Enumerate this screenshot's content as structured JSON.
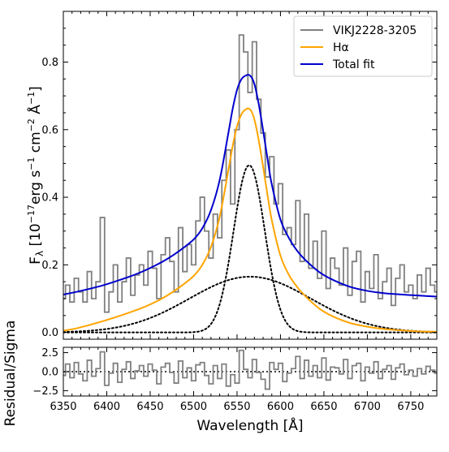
{
  "chart_data": [
    {
      "type": "line",
      "panel": "main",
      "ylabel_parts": [
        "F",
        "λ",
        " [10",
        "−17",
        "erg s",
        "−1",
        " cm",
        "−2",
        " Å",
        "−1",
        "]"
      ],
      "xlim": [
        6350,
        6780
      ],
      "ylim": [
        -0.02,
        0.95
      ],
      "yticks": [
        0.0,
        0.2,
        0.4,
        0.6,
        0.8
      ],
      "ytick_labels": [
        "0.0",
        "0.2",
        "0.4",
        "0.6",
        "0.8"
      ],
      "legend_position": "upper-right",
      "legend": [
        {
          "label": "VIKJ2228-3205",
          "color": "#808080"
        },
        {
          "label": "Hα",
          "color": "#ffa500"
        },
        {
          "label": "Total fit",
          "color": "#0000cd"
        }
      ],
      "components": [
        {
          "name": "narrow-gaussian",
          "center": 6564,
          "amplitude": 0.495,
          "sigma": 18,
          "color": "#000000",
          "style": "dotted"
        },
        {
          "name": "broad-gaussian",
          "center": 6565,
          "amplitude": 0.165,
          "sigma": 70,
          "color": "#000000",
          "style": "dotted"
        }
      ],
      "series": [
        {
          "name": "VIKJ2228-3205",
          "color": "#808080",
          "style": "step",
          "x": [
            6350,
            6355,
            6360,
            6365,
            6370,
            6375,
            6380,
            6385,
            6390,
            6395,
            6400,
            6405,
            6410,
            6415,
            6420,
            6425,
            6430,
            6435,
            6440,
            6445,
            6450,
            6455,
            6460,
            6465,
            6470,
            6475,
            6480,
            6485,
            6490,
            6495,
            6500,
            6505,
            6510,
            6515,
            6520,
            6525,
            6530,
            6535,
            6540,
            6545,
            6550,
            6555,
            6560,
            6565,
            6570,
            6575,
            6580,
            6585,
            6590,
            6595,
            6600,
            6605,
            6610,
            6615,
            6620,
            6625,
            6630,
            6635,
            6640,
            6645,
            6650,
            6655,
            6660,
            6665,
            6670,
            6675,
            6680,
            6685,
            6690,
            6695,
            6700,
            6705,
            6710,
            6715,
            6720,
            6725,
            6730,
            6735,
            6740,
            6745,
            6750,
            6755,
            6760,
            6765,
            6770,
            6775,
            6780
          ],
          "values": [
            0.1,
            0.14,
            0.09,
            0.16,
            0.12,
            0.09,
            0.18,
            0.1,
            0.15,
            0.34,
            0.06,
            0.12,
            0.2,
            0.09,
            0.15,
            0.22,
            0.11,
            0.17,
            0.2,
            0.14,
            0.24,
            0.19,
            0.1,
            0.23,
            0.28,
            0.21,
            0.12,
            0.31,
            0.18,
            0.26,
            0.2,
            0.33,
            0.4,
            0.3,
            0.22,
            0.35,
            0.28,
            0.45,
            0.54,
            0.38,
            0.6,
            0.88,
            0.83,
            0.71,
            0.86,
            0.69,
            0.59,
            0.46,
            0.52,
            0.38,
            0.44,
            0.29,
            0.31,
            0.26,
            0.39,
            0.21,
            0.35,
            0.19,
            0.27,
            0.16,
            0.3,
            0.13,
            0.22,
            0.19,
            0.14,
            0.25,
            0.11,
            0.21,
            0.24,
            0.09,
            0.18,
            0.13,
            0.23,
            0.1,
            0.15,
            0.19,
            0.08,
            0.16,
            0.2,
            0.12,
            0.14,
            0.1,
            0.17,
            0.12,
            0.19,
            0.14,
            0.12
          ]
        },
        {
          "name": "Hα",
          "color": "#ffa500",
          "style": "line",
          "x": [
            6350,
            6365,
            6380,
            6395,
            6410,
            6425,
            6440,
            6455,
            6470,
            6485,
            6500,
            6510,
            6520,
            6530,
            6540,
            6545,
            6550,
            6555,
            6560,
            6565,
            6570,
            6575,
            6580,
            6585,
            6590,
            6600,
            6610,
            6620,
            6630,
            6645,
            6660,
            6680,
            6700,
            6720,
            6740,
            6760,
            6780
          ],
          "values": [
            0.005,
            0.012,
            0.022,
            0.033,
            0.045,
            0.058,
            0.072,
            0.089,
            0.11,
            0.136,
            0.167,
            0.2,
            0.253,
            0.342,
            0.48,
            0.552,
            0.61,
            0.645,
            0.66,
            0.66,
            0.63,
            0.568,
            0.49,
            0.408,
            0.332,
            0.227,
            0.169,
            0.132,
            0.104,
            0.07,
            0.048,
            0.028,
            0.017,
            0.01,
            0.006,
            0.003,
            0.002
          ]
        },
        {
          "name": "Total fit",
          "color": "#0000cd",
          "style": "line",
          "x": [
            6350,
            6365,
            6380,
            6395,
            6410,
            6425,
            6440,
            6455,
            6470,
            6485,
            6500,
            6510,
            6520,
            6530,
            6540,
            6545,
            6550,
            6555,
            6560,
            6565,
            6570,
            6575,
            6580,
            6585,
            6590,
            6600,
            6610,
            6620,
            6630,
            6645,
            6660,
            6680,
            6700,
            6720,
            6740,
            6760,
            6780
          ],
          "values": [
            0.112,
            0.12,
            0.129,
            0.139,
            0.151,
            0.164,
            0.179,
            0.197,
            0.218,
            0.244,
            0.275,
            0.308,
            0.362,
            0.451,
            0.59,
            0.662,
            0.718,
            0.749,
            0.76,
            0.76,
            0.735,
            0.675,
            0.598,
            0.515,
            0.438,
            0.334,
            0.278,
            0.239,
            0.211,
            0.178,
            0.156,
            0.135,
            0.123,
            0.116,
            0.112,
            0.109,
            0.106
          ]
        }
      ]
    },
    {
      "type": "line",
      "panel": "residual",
      "xlabel": "Wavelength [Å]",
      "ylabel": "Residual/Sigma",
      "xlim": [
        6350,
        6780
      ],
      "ylim": [
        -3.2,
        3.2
      ],
      "xticks": [
        6350,
        6400,
        6450,
        6500,
        6550,
        6600,
        6650,
        6700,
        6750
      ],
      "xtick_labels": [
        "6350",
        "6400",
        "6450",
        "6500",
        "6550",
        "6600",
        "6650",
        "6700",
        "6750"
      ],
      "yticks": [
        -2.5,
        0.0,
        2.5
      ],
      "ytick_labels": [
        "−2.5",
        "0.0",
        "2.5"
      ],
      "series": [
        {
          "name": "residual",
          "color": "#808080",
          "style": "step",
          "x": [
            6350,
            6355,
            6360,
            6365,
            6370,
            6375,
            6380,
            6385,
            6390,
            6395,
            6400,
            6405,
            6410,
            6415,
            6420,
            6425,
            6430,
            6435,
            6440,
            6445,
            6450,
            6455,
            6460,
            6465,
            6470,
            6475,
            6480,
            6485,
            6490,
            6495,
            6500,
            6505,
            6510,
            6515,
            6520,
            6525,
            6530,
            6535,
            6540,
            6545,
            6550,
            6555,
            6560,
            6565,
            6570,
            6575,
            6580,
            6585,
            6590,
            6595,
            6600,
            6605,
            6610,
            6615,
            6620,
            6625,
            6630,
            6635,
            6640,
            6645,
            6650,
            6655,
            6660,
            6665,
            6670,
            6675,
            6680,
            6685,
            6690,
            6695,
            6700,
            6705,
            6710,
            6715,
            6720,
            6725,
            6730,
            6735,
            6740,
            6745,
            6750,
            6755,
            6760,
            6765,
            6770,
            6775,
            6780
          ],
          "values": [
            -0.5,
            1.0,
            -0.8,
            1.2,
            -0.3,
            -1.2,
            1.5,
            -0.6,
            0.4,
            2.6,
            -1.8,
            -0.2,
            1.1,
            -1.4,
            0.3,
            1.3,
            -0.9,
            0.1,
            0.8,
            -0.6,
            1.0,
            0.2,
            -1.6,
            0.6,
            1.1,
            -0.1,
            -1.5,
            1.4,
            -0.8,
            0.5,
            -1.2,
            0.9,
            1.2,
            -0.5,
            -1.6,
            0.8,
            -0.9,
            1.0,
            -1.9,
            -0.4,
            -1.5,
            2.8,
            0.3,
            -0.8,
            1.6,
            -0.1,
            -1.0,
            -2.3,
            1.2,
            0.3,
            1.1,
            -1.3,
            -0.2,
            0.4,
            2.0,
            -0.9,
            1.5,
            -0.6,
            0.8,
            -0.8,
            1.8,
            -1.1,
            0.6,
            0.5,
            -0.3,
            1.6,
            -0.9,
            0.8,
            1.1,
            -1.2,
            0.6,
            -0.2,
            1.3,
            -0.9,
            0.3,
            0.8,
            -1.0,
            0.5,
            1.0,
            -0.4,
            0.2,
            -0.6,
            0.4,
            -0.3,
            0.7,
            0.2,
            -0.2
          ]
        }
      ]
    }
  ]
}
